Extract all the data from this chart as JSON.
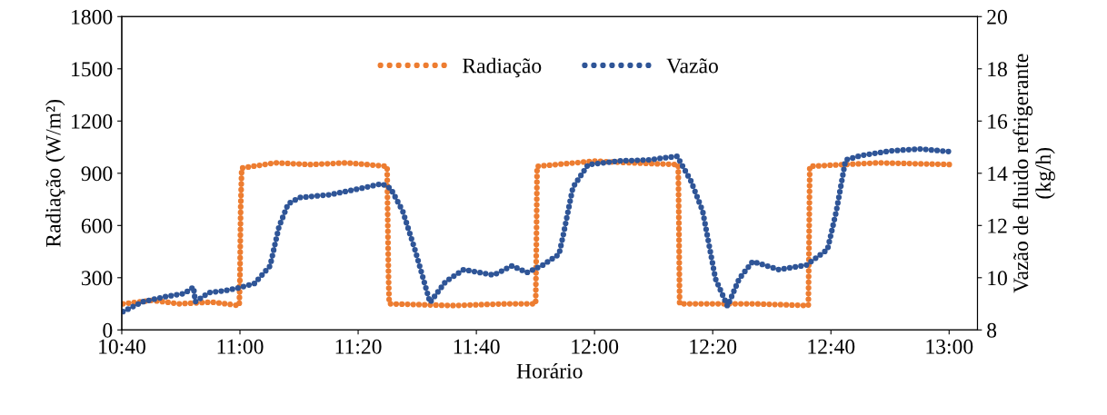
{
  "chart_data": {
    "type": "line",
    "xlabel": "Horário",
    "ylabel": "Radiação (W/m²)",
    "y2label": "Vazão de fluido refrigerante\n(kg/h)",
    "xlim": [
      10.6667,
      13.08
    ],
    "xticks": [
      {
        "value": 10.6667,
        "label": "10:40"
      },
      {
        "value": 11.0,
        "label": "11:00"
      },
      {
        "value": 11.3333,
        "label": "11:20"
      },
      {
        "value": 11.6667,
        "label": "11:40"
      },
      {
        "value": 12.0,
        "label": "12:00"
      },
      {
        "value": 12.3333,
        "label": "12:20"
      },
      {
        "value": 12.6667,
        "label": "12:40"
      },
      {
        "value": 13.0,
        "label": "13:00"
      }
    ],
    "ylim": [
      0,
      1800
    ],
    "yticks": [
      0,
      300,
      600,
      900,
      1200,
      1500,
      1800
    ],
    "y2lim": [
      8,
      20
    ],
    "y2ticks": [
      8,
      10,
      12,
      14,
      16,
      18,
      20
    ],
    "grid": false,
    "legend": "top",
    "line_style": "dotted",
    "marker": "none",
    "series": [
      {
        "name": "Radiação",
        "color": "#ed7d31",
        "x": [
          10.67,
          10.75,
          10.83,
          10.92,
          10.998,
          11.0,
          11.002,
          11.005,
          11.1,
          11.2,
          11.3,
          11.415,
          11.417,
          11.419,
          11.421,
          11.6,
          11.75,
          11.834,
          11.836,
          11.838,
          12.0,
          12.1,
          12.236,
          12.238,
          12.24,
          12.45,
          12.603,
          12.605,
          12.607,
          12.8,
          13.008
        ],
        "values": [
          150,
          170,
          150,
          160,
          140,
          300,
          700,
          930,
          960,
          950,
          960,
          940,
          600,
          300,
          150,
          140,
          150,
          150,
          500,
          940,
          970,
          960,
          950,
          600,
          150,
          150,
          140,
          500,
          940,
          960,
          950
        ]
      },
      {
        "name": "Vazão",
        "color": "#2f5597",
        "axis": "y2",
        "x": [
          10.67,
          10.726,
          10.785,
          10.844,
          10.869,
          10.874,
          10.913,
          10.956,
          10.997,
          11.041,
          11.085,
          11.11,
          11.136,
          11.169,
          11.254,
          11.341,
          11.4,
          11.425,
          11.459,
          11.495,
          11.536,
          11.58,
          11.631,
          11.715,
          11.767,
          11.81,
          11.854,
          11.9,
          11.913,
          11.939,
          11.982,
          12.067,
          12.151,
          12.233,
          12.272,
          12.305,
          12.341,
          12.375,
          12.408,
          12.446,
          12.52,
          12.597,
          12.657,
          12.682,
          12.708,
          12.752,
          12.836,
          12.92,
          13.008
        ],
        "values": [
          8.7,
          9.08,
          9.26,
          9.4,
          9.64,
          9.08,
          9.43,
          9.5,
          9.61,
          9.78,
          10.45,
          11.95,
          12.83,
          13.07,
          13.18,
          13.42,
          13.6,
          13.42,
          12.55,
          11.01,
          9.05,
          9.85,
          10.31,
          10.1,
          10.45,
          10.2,
          10.48,
          10.9,
          11.71,
          13.46,
          14.33,
          14.47,
          14.51,
          14.65,
          13.7,
          12.55,
          9.96,
          8.91,
          9.96,
          10.62,
          10.31,
          10.48,
          11.08,
          12.55,
          14.51,
          14.68,
          14.86,
          14.93,
          14.82
        ]
      }
    ]
  }
}
